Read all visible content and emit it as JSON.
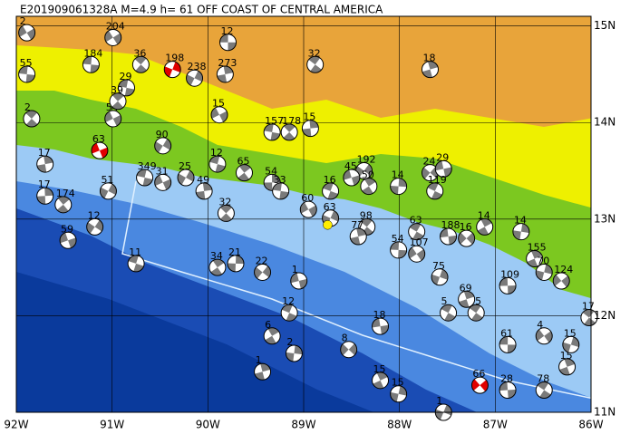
{
  "title": "E201909061328A M=4.9 h= 61 OFF COAST OF CENTRAL AMERICA",
  "xlim": [
    -92,
    -86
  ],
  "ylim": [
    11,
    15.1
  ],
  "xticks": [
    {
      "value": -92,
      "label": "92W"
    },
    {
      "value": -91,
      "label": "91W"
    },
    {
      "value": -90,
      "label": "90W"
    },
    {
      "value": -89,
      "label": "89W"
    },
    {
      "value": -88,
      "label": "88W"
    },
    {
      "value": -87,
      "label": "87W"
    },
    {
      "value": -86,
      "label": "86W"
    }
  ],
  "yticks": [
    {
      "value": 11,
      "label": "11N"
    },
    {
      "value": 12,
      "label": "12N"
    },
    {
      "value": 13,
      "label": "13N"
    },
    {
      "value": 14,
      "label": "14N"
    },
    {
      "value": 15,
      "label": "15N"
    }
  ],
  "ball_color": "#ffffff",
  "ball_shade": "#7a7a7a",
  "highlight_color": "#e00000",
  "epicenter": {
    "lon": -88.75,
    "lat": 12.94,
    "color": "#ffee00"
  },
  "events": [
    {
      "lon": -89.79,
      "lat": 14.83,
      "depth": "12"
    },
    {
      "lon": -88.88,
      "lat": 14.6,
      "depth": "32"
    },
    {
      "lon": -87.68,
      "lat": 14.55,
      "depth": "18"
    },
    {
      "lon": -90.37,
      "lat": 14.55,
      "depth": "198",
      "highlight": true
    },
    {
      "lon": -90.99,
      "lat": 14.88,
      "depth": "204"
    },
    {
      "lon": -91.22,
      "lat": 14.6,
      "depth": "184"
    },
    {
      "lon": -90.7,
      "lat": 14.6,
      "depth": "36"
    },
    {
      "lon": -89.82,
      "lat": 14.5,
      "depth": "273"
    },
    {
      "lon": -90.14,
      "lat": 14.46,
      "depth": "238"
    },
    {
      "lon": -89.88,
      "lat": 14.08,
      "depth": "15"
    },
    {
      "lon": -89.33,
      "lat": 13.9,
      "depth": "157"
    },
    {
      "lon": -89.15,
      "lat": 13.9,
      "depth": "178"
    },
    {
      "lon": -88.93,
      "lat": 13.94,
      "depth": "15"
    },
    {
      "lon": -90.47,
      "lat": 13.76,
      "depth": "90"
    },
    {
      "lon": -91.13,
      "lat": 13.71,
      "depth": "63",
      "highlight": true
    },
    {
      "lon": -89.9,
      "lat": 13.57,
      "depth": "12"
    },
    {
      "lon": -89.62,
      "lat": 13.48,
      "depth": "65"
    },
    {
      "lon": -89.33,
      "lat": 13.38,
      "depth": "54"
    },
    {
      "lon": -88.37,
      "lat": 13.5,
      "depth": "192"
    },
    {
      "lon": -88.5,
      "lat": 13.43,
      "depth": "45"
    },
    {
      "lon": -88.72,
      "lat": 13.29,
      "depth": "16"
    },
    {
      "lon": -88.32,
      "lat": 13.34,
      "depth": "50"
    },
    {
      "lon": -88.01,
      "lat": 13.34,
      "depth": "14"
    },
    {
      "lon": -87.68,
      "lat": 13.48,
      "depth": "24"
    },
    {
      "lon": -87.54,
      "lat": 13.52,
      "depth": "29"
    },
    {
      "lon": -87.63,
      "lat": 13.29,
      "depth": "119"
    },
    {
      "lon": -87.11,
      "lat": 12.92,
      "depth": "14"
    },
    {
      "lon": -86.73,
      "lat": 12.87,
      "depth": "14"
    },
    {
      "lon": -87.3,
      "lat": 12.8,
      "depth": "16"
    },
    {
      "lon": -87.49,
      "lat": 12.82,
      "depth": "188"
    },
    {
      "lon": -87.82,
      "lat": 12.87,
      "depth": "63"
    },
    {
      "lon": -86.59,
      "lat": 12.59,
      "depth": "155"
    },
    {
      "lon": -86.49,
      "lat": 12.45,
      "depth": "70"
    },
    {
      "lon": -86.31,
      "lat": 12.36,
      "depth": "124"
    },
    {
      "lon": -86.87,
      "lat": 12.31,
      "depth": "109"
    },
    {
      "lon": -87.2,
      "lat": 12.03,
      "depth": "35"
    },
    {
      "lon": -87.3,
      "lat": 12.17,
      "depth": "69"
    },
    {
      "lon": -87.58,
      "lat": 12.4,
      "depth": "75"
    },
    {
      "lon": -87.82,
      "lat": 12.64,
      "depth": "107"
    },
    {
      "lon": -88.01,
      "lat": 12.68,
      "depth": "54"
    },
    {
      "lon": -88.34,
      "lat": 12.92,
      "depth": "98"
    },
    {
      "lon": -88.43,
      "lat": 12.82,
      "depth": "77"
    },
    {
      "lon": -88.72,
      "lat": 13.01,
      "depth": "63"
    },
    {
      "lon": -88.95,
      "lat": 13.1,
      "depth": "60"
    },
    {
      "lon": -89.24,
      "lat": 13.29,
      "depth": "33"
    },
    {
      "lon": -89.81,
      "lat": 13.06,
      "depth": "32"
    },
    {
      "lon": -90.04,
      "lat": 13.29,
      "depth": "49"
    },
    {
      "lon": -90.23,
      "lat": 13.43,
      "depth": "25"
    },
    {
      "lon": -90.47,
      "lat": 13.38,
      "depth": "31"
    },
    {
      "lon": -90.66,
      "lat": 13.43,
      "depth": "349"
    },
    {
      "lon": -91.51,
      "lat": 13.15,
      "depth": "174"
    },
    {
      "lon": -91.7,
      "lat": 13.24,
      "depth": "17"
    },
    {
      "lon": -91.18,
      "lat": 12.92,
      "depth": "12"
    },
    {
      "lon": -91.46,
      "lat": 12.78,
      "depth": "59"
    },
    {
      "lon": -90.75,
      "lat": 12.54,
      "depth": "11"
    },
    {
      "lon": -89.9,
      "lat": 12.5,
      "depth": "34"
    },
    {
      "lon": -89.71,
      "lat": 12.54,
      "depth": "21"
    },
    {
      "lon": -89.43,
      "lat": 12.45,
      "depth": "22"
    },
    {
      "lon": -89.05,
      "lat": 12.36,
      "depth": "1"
    },
    {
      "lon": -89.15,
      "lat": 12.03,
      "depth": "12"
    },
    {
      "lon": -89.33,
      "lat": 11.79,
      "depth": "6"
    },
    {
      "lon": -89.1,
      "lat": 11.61,
      "depth": "2"
    },
    {
      "lon": -88.53,
      "lat": 11.65,
      "depth": "8"
    },
    {
      "lon": -88.2,
      "lat": 11.89,
      "depth": "18"
    },
    {
      "lon": -87.49,
      "lat": 12.03,
      "depth": "5"
    },
    {
      "lon": -88.2,
      "lat": 11.33,
      "depth": "15"
    },
    {
      "lon": -88.01,
      "lat": 11.19,
      "depth": "15"
    },
    {
      "lon": -87.16,
      "lat": 11.28,
      "depth": "66",
      "highlight": true
    },
    {
      "lon": -86.87,
      "lat": 11.23,
      "depth": "28"
    },
    {
      "lon": -86.49,
      "lat": 11.23,
      "depth": "78"
    },
    {
      "lon": -86.25,
      "lat": 11.47,
      "depth": "15"
    },
    {
      "lon": -86.21,
      "lat": 11.7,
      "depth": "15"
    },
    {
      "lon": -86.49,
      "lat": 11.79,
      "depth": "4"
    },
    {
      "lon": -86.87,
      "lat": 11.7,
      "depth": "61"
    },
    {
      "lon": -86.02,
      "lat": 11.98,
      "depth": "17"
    },
    {
      "lon": -89.43,
      "lat": 11.42,
      "depth": "1"
    },
    {
      "lon": -87.54,
      "lat": 11.0,
      "depth": "1"
    },
    {
      "lon": -91.89,
      "lat": 14.93,
      "depth": "2"
    },
    {
      "lon": -91.89,
      "lat": 14.5,
      "depth": "55"
    },
    {
      "lon": -91.84,
      "lat": 14.04,
      "depth": "2"
    },
    {
      "lon": -91.7,
      "lat": 13.57,
      "depth": "17"
    },
    {
      "lon": -91.04,
      "lat": 13.29,
      "depth": "51"
    },
    {
      "lon": -90.99,
      "lat": 14.04,
      "depth": "54"
    },
    {
      "lon": -90.85,
      "lat": 14.36,
      "depth": "29"
    },
    {
      "lon": -90.94,
      "lat": 14.22,
      "depth": "39"
    }
  ]
}
